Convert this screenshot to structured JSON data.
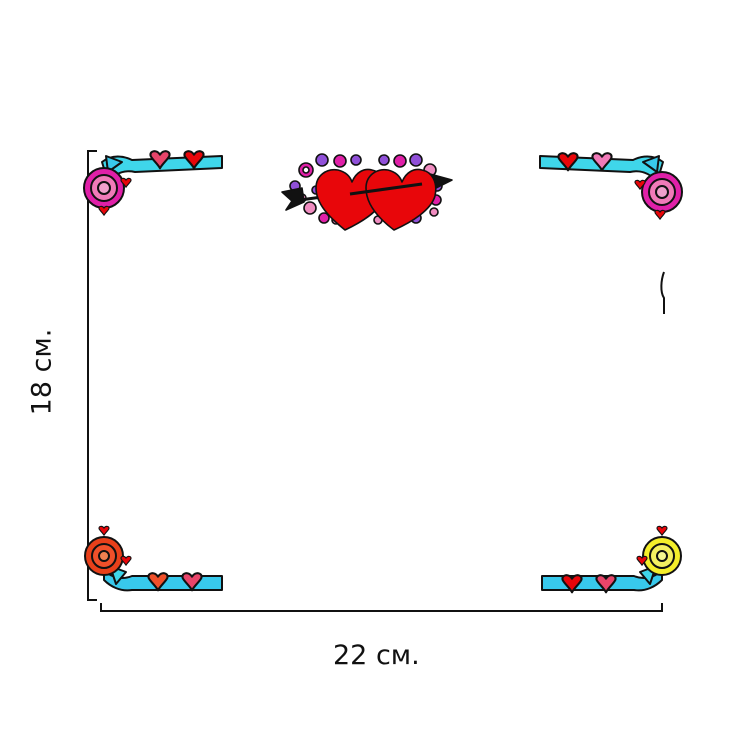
{
  "dimensions": {
    "width_label": "22 см.",
    "height_label": "18 см."
  },
  "colors": {
    "frame_line": "#111111",
    "heart_red": "#e8060a",
    "heart_pink": "#e8456a",
    "ribbon_cyan": "#3fd6ea",
    "ribbon_blue": "#38c9ec",
    "flower_magenta": "#e020a8",
    "flower_purple": "#9050d8",
    "flower_pink": "#f08cc0",
    "rosette_pink": "#f07ab8",
    "rosette_orange": "#f0502a",
    "rosette_yellow": "#f4ee2a"
  },
  "decorations": [
    "top-left-ribbon-corner",
    "top-right-ribbon-corner",
    "bottom-left-ribbon-corner",
    "bottom-right-ribbon-corner",
    "two-hearts-arrow-with-flowers"
  ]
}
